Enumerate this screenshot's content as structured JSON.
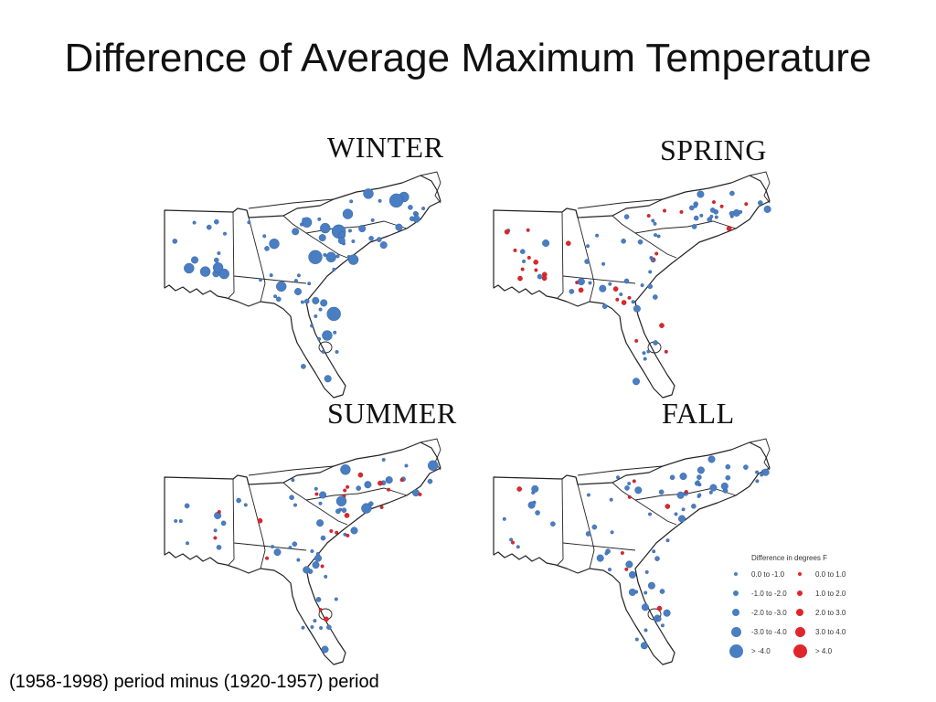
{
  "title": "Difference of Average Maximum Temperature",
  "caption": "(1958-1998) period minus (1920-1957) period",
  "colors": {
    "cooling": "#4a7ec3",
    "warming": "#e0262b",
    "outline": "#222222"
  },
  "maps": [
    {
      "season": "WINTER"
    },
    {
      "season": "SPRING"
    },
    {
      "season": "SUMMER"
    },
    {
      "season": "FALL"
    }
  ],
  "legend": {
    "title": "Difference in degrees F",
    "cooling": [
      "0.0 to -1.0",
      "-1.0 to -2.0",
      "-2.0 to -3.0",
      "-3.0 to -4.0",
      "> -4.0"
    ],
    "warming": [
      "0.0 to 1.0",
      "1.0 to 2.0",
      "2.0 to 3.0",
      "3.0 to 4.0",
      "> 4.0"
    ]
  }
}
